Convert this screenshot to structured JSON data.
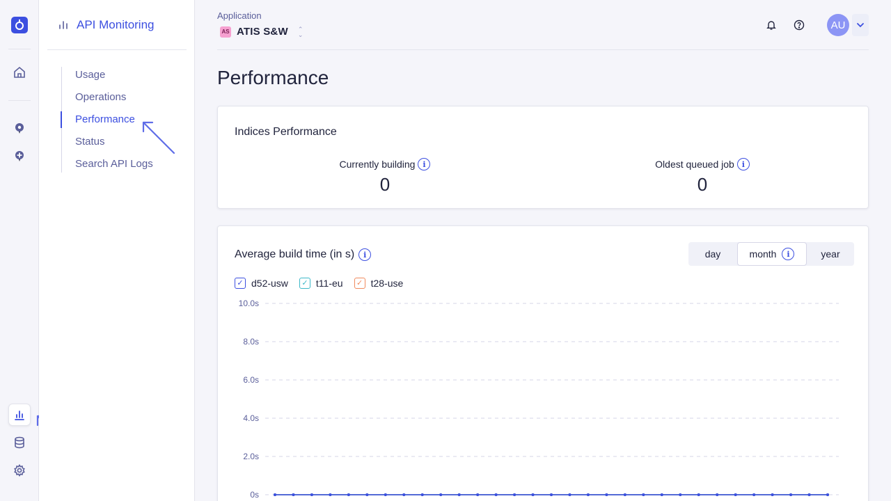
{
  "sidebar": {
    "title": "API Monitoring",
    "items": [
      {
        "label": "Usage"
      },
      {
        "label": "Operations"
      },
      {
        "label": "Performance"
      },
      {
        "label": "Status"
      },
      {
        "label": "Search API Logs"
      }
    ]
  },
  "header": {
    "app_label": "Application",
    "app_badge": "AS",
    "app_name": "ATIS S&W",
    "avatar": "AU"
  },
  "page": {
    "title": "Performance"
  },
  "indices": {
    "title": "Indices Performance",
    "currently_building_label": "Currently building",
    "currently_building_value": "0",
    "oldest_job_label": "Oldest queued job",
    "oldest_job_value": "0"
  },
  "build": {
    "title": "Average build time (in s)",
    "periods": [
      "day",
      "month",
      "year"
    ],
    "selected_period": "month"
  },
  "colors": {
    "accent": "#3c4fe0",
    "d52": "#3c4fe0",
    "t11": "#3cb8c8",
    "t28": "#f08a5d"
  },
  "chart_data": {
    "type": "line",
    "series": [
      {
        "name": "d52-usw",
        "values": [
          0,
          0,
          0,
          0,
          0,
          0,
          0,
          0,
          0,
          0,
          0,
          0,
          0,
          0,
          0,
          0,
          0,
          0,
          0,
          0,
          0,
          0,
          0,
          0,
          0,
          0,
          0,
          0,
          0,
          0,
          0
        ]
      },
      {
        "name": "t11-eu",
        "values": [
          0,
          0,
          0,
          0,
          0,
          0,
          0,
          0,
          0,
          0,
          0,
          0,
          0,
          0,
          0,
          0,
          0,
          0,
          0,
          0,
          0,
          0,
          0,
          0,
          0,
          0,
          0,
          0,
          0,
          0,
          0
        ]
      },
      {
        "name": "t28-use",
        "values": [
          0,
          0,
          0,
          0,
          0,
          0,
          0,
          0,
          0,
          0,
          0,
          0,
          0,
          0,
          0,
          0,
          0,
          0,
          0,
          0,
          0,
          0,
          0,
          0,
          0,
          0,
          0,
          0,
          0,
          0,
          0
        ]
      }
    ],
    "yticks": [
      "0s",
      "2.0s",
      "4.0s",
      "6.0s",
      "8.0s",
      "10.0s"
    ],
    "ylim": [
      0,
      10
    ],
    "grid": true
  }
}
